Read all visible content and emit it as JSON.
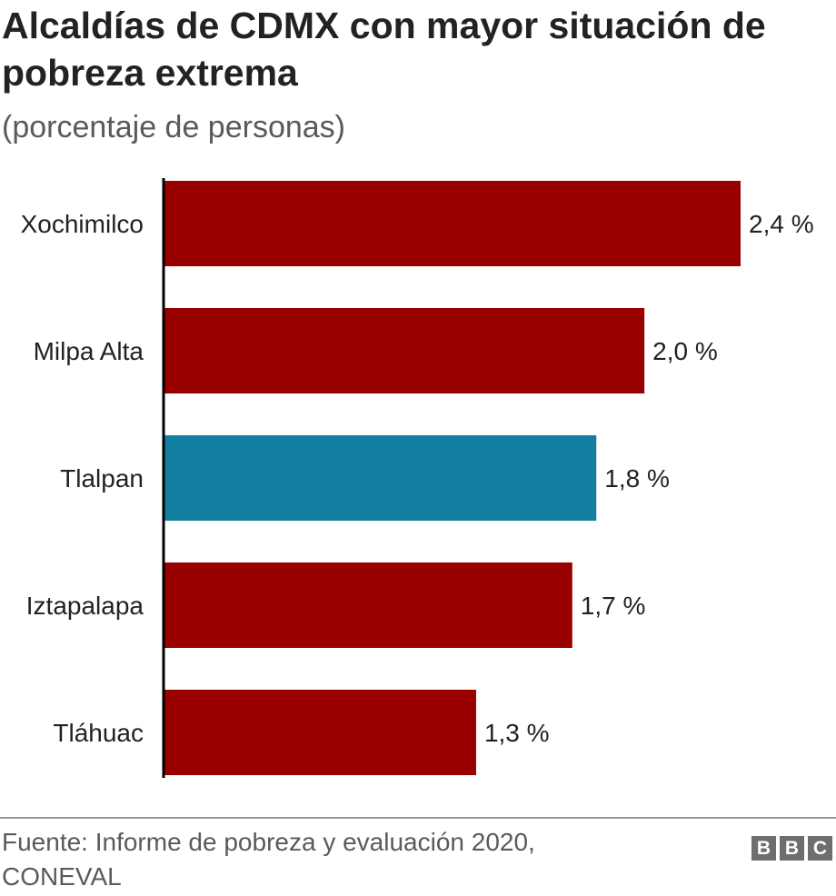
{
  "header": {
    "title": "Alcaldías de CDMX con mayor situación de pobreza extrema",
    "subtitle": "(porcentaje de personas)"
  },
  "footer": {
    "source": "Fuente: Informe de pobreza y evaluación 2020, CONEVAL",
    "logo_letters": [
      "B",
      "B",
      "C"
    ]
  },
  "colors": {
    "default_bar": "#990000",
    "highlight_bar": "#1380A1",
    "axis": "#000000",
    "text": "#222222"
  },
  "chart_data": {
    "type": "bar",
    "orientation": "horizontal",
    "title": "Alcaldías de CDMX con mayor situación de pobreza extrema",
    "subtitle": "(porcentaje de personas)",
    "categories": [
      "Xochimilco",
      "Milpa Alta",
      "Tlalpan",
      "Iztapalapa",
      "Tláhuac"
    ],
    "values": [
      2.4,
      2.0,
      1.8,
      1.7,
      1.3
    ],
    "value_labels": [
      "2,4 %",
      "2,0 %",
      "1,8 %",
      "1,7 %",
      "1,3 %"
    ],
    "highlight": [
      "Tlalpan"
    ],
    "xlabel": "",
    "ylabel": "",
    "xlim": [
      0,
      2.4
    ],
    "grid": false,
    "legend": "none"
  }
}
